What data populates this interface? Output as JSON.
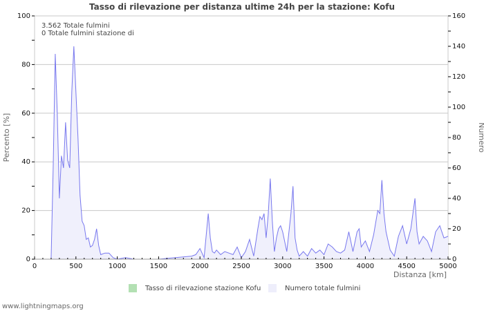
{
  "title": "Tasso di rilevazione per distanza ultime 24h per la stazione: Kofu",
  "annotations": {
    "total_strikes": "3.562 Totale fulmini",
    "station_strikes": "0 Totale fulmini stazione di"
  },
  "axes": {
    "x_label": "Distanza   [km]",
    "y_left_label": "Percento   [%]",
    "y_right_label": "Numero",
    "x_ticks": [
      "0",
      "500",
      "1000",
      "1500",
      "2000",
      "2500",
      "3000",
      "3500",
      "4000",
      "4500",
      "5000"
    ],
    "y_left_ticks": [
      "0",
      "20",
      "40",
      "60",
      "80",
      "100"
    ],
    "y_right_ticks": [
      "0",
      "20",
      "40",
      "60",
      "80",
      "100",
      "120",
      "140",
      "160"
    ]
  },
  "legend": {
    "station_rate": "Tasso di rilevazione stazione Kofu",
    "total_count": "Numero totale fulmini",
    "station_rate_color": "#b3e0b3",
    "total_count_color": "#eeeefb"
  },
  "footer": "www.lightningmaps.org",
  "colors": {
    "line": "#7777ee",
    "fill": "#f0f0fc",
    "grid": "#c8c8c8"
  },
  "chart_data": {
    "type": "area",
    "title": "Tasso di rilevazione per distanza ultime 24h per la stazione: Kofu",
    "xlabel": "Distanza [km]",
    "ylabel_left": "Percento [%]",
    "ylabel_right": "Numero",
    "xlim": [
      0,
      5000
    ],
    "ylim_left": [
      0,
      100
    ],
    "ylim_right": [
      0,
      160
    ],
    "grid": true,
    "legend_position": "bottom",
    "series": [
      {
        "name": "Tasso di rilevazione stazione Kofu",
        "axis": "left",
        "x": [
          0,
          5000
        ],
        "values": [
          0,
          0
        ]
      },
      {
        "name": "Numero totale fulmini",
        "axis": "right",
        "x": [
          200,
          225,
          250,
          275,
          300,
          325,
          350,
          375,
          400,
          425,
          450,
          475,
          500,
          525,
          550,
          575,
          600,
          625,
          650,
          675,
          700,
          725,
          750,
          775,
          800,
          850,
          900,
          950,
          1000,
          1100,
          1200,
          1500,
          1900,
          1950,
          2000,
          2050,
          2100,
          2125,
          2150,
          2175,
          2200,
          2250,
          2300,
          2350,
          2400,
          2450,
          2500,
          2550,
          2600,
          2650,
          2700,
          2725,
          2750,
          2775,
          2800,
          2825,
          2850,
          2875,
          2900,
          2925,
          2950,
          2975,
          3000,
          3050,
          3100,
          3125,
          3150,
          3175,
          3200,
          3250,
          3300,
          3350,
          3400,
          3450,
          3500,
          3550,
          3600,
          3650,
          3700,
          3750,
          3800,
          3850,
          3900,
          3925,
          3950,
          4000,
          4050,
          4100,
          4150,
          4175,
          4200,
          4225,
          4250,
          4300,
          4350,
          4400,
          4450,
          4500,
          4550,
          4600,
          4625,
          4650,
          4700,
          4750,
          4800,
          4850,
          4900,
          4950,
          5000
        ],
        "values": [
          0,
          60,
          135,
          95,
          40,
          68,
          60,
          90,
          65,
          60,
          110,
          140,
          110,
          80,
          42,
          25,
          22,
          13,
          14,
          8,
          9,
          13,
          20,
          9,
          3,
          4,
          4,
          1,
          0,
          1,
          0,
          0,
          2,
          3,
          7,
          1,
          30,
          14,
          5,
          4,
          6,
          3,
          5,
          4,
          3,
          8,
          1,
          5,
          13,
          2,
          20,
          28,
          26,
          30,
          14,
          29,
          53,
          25,
          5,
          14,
          20,
          22,
          18,
          5,
          30,
          48,
          14,
          6,
          2,
          5,
          2,
          7,
          4,
          6,
          3,
          10,
          8,
          5,
          4,
          6,
          18,
          5,
          18,
          20,
          8,
          12,
          5,
          16,
          32,
          30,
          52,
          30,
          18,
          6,
          2,
          15,
          22,
          10,
          20,
          40,
          18,
          10,
          15,
          12,
          5,
          18,
          22,
          14,
          15
        ]
      }
    ]
  }
}
